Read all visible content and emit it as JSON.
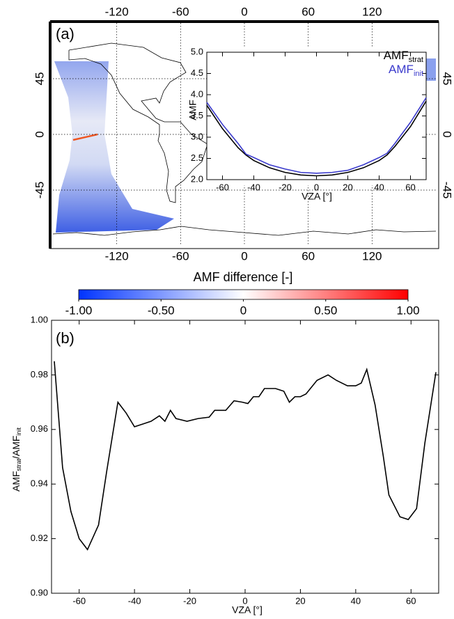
{
  "chart_data": [
    {
      "type": "map",
      "label": "(a)",
      "xlim": [
        -180,
        180
      ],
      "ylim": [
        -90,
        90
      ],
      "xticks": [
        -120,
        -60,
        0,
        60,
        120
      ],
      "yticks": [
        45,
        0,
        -45
      ],
      "grid": true
    },
    {
      "type": "line",
      "xlabel": "VZA [°]",
      "ylabel": "AMF",
      "x": [
        -70,
        -60,
        -50,
        -45,
        -40,
        -30,
        -20,
        -10,
        0,
        10,
        20,
        30,
        40,
        45,
        50,
        60,
        70
      ],
      "series": [
        {
          "name": "AMF",
          "subscript": "strat",
          "color": "#000000",
          "values": [
            3.75,
            3.2,
            2.75,
            2.58,
            2.45,
            2.28,
            2.17,
            2.11,
            2.09,
            2.11,
            2.17,
            2.28,
            2.45,
            2.58,
            2.78,
            3.25,
            3.85
          ]
        },
        {
          "name": "AMF",
          "subscript": "init",
          "color": "#3a3acc",
          "values": [
            3.82,
            3.3,
            2.85,
            2.6,
            2.52,
            2.35,
            2.25,
            2.17,
            2.15,
            2.17,
            2.22,
            2.35,
            2.52,
            2.62,
            2.85,
            3.35,
            3.93
          ]
        }
      ],
      "xlim": [
        -70,
        70
      ],
      "ylim": [
        2,
        5
      ],
      "xticks": [
        -60,
        -40,
        -20,
        0,
        20,
        40,
        60
      ],
      "yticks": [
        {
          "value": 2,
          "label": "2.0"
        },
        {
          "value": 2.5,
          "label": "2.5"
        },
        {
          "value": 3,
          "label": "3.0"
        },
        {
          "value": 3.5,
          "label": "3.5"
        },
        {
          "value": 4,
          "label": "4.0"
        },
        {
          "value": 4.5,
          "label": "4.5"
        },
        {
          "value": 5,
          "label": "5.0"
        }
      ],
      "legend": "upper right"
    },
    {
      "type": "colorbar",
      "title": "AMF difference [-]",
      "colors": [
        "#0033ff",
        "#ffffff",
        "#ff0000"
      ],
      "lim": [
        -1,
        1
      ],
      "ticks": [
        {
          "value": -1,
          "label": "-1.00"
        },
        {
          "value": -0.5,
          "label": "-0.50"
        },
        0,
        {
          "value": 0.5,
          "label": "0.50"
        },
        {
          "value": 1,
          "label": "1.00"
        }
      ]
    },
    {
      "type": "line",
      "label": "(b)",
      "xlabel": "VZA [°]",
      "ylabel": [
        "AMF",
        "strat",
        "/AMF",
        "init"
      ],
      "x": [
        -69,
        -66,
        -63,
        -60,
        -57,
        -53,
        -50,
        -46,
        -43,
        -40,
        -37,
        -34,
        -31,
        -29,
        -27,
        -25,
        -21,
        -17,
        -13,
        -11,
        -7,
        -4,
        -1,
        1,
        3,
        5,
        7,
        11,
        14,
        16,
        18,
        20,
        22,
        26,
        30,
        33,
        37,
        40,
        42,
        44,
        47,
        50,
        52,
        56,
        59,
        62,
        65,
        69
      ],
      "series": [
        {
          "color": "#000000",
          "values": [
            0.985,
            0.946,
            0.93,
            0.92,
            0.916,
            0.925,
            0.945,
            0.97,
            0.966,
            0.961,
            0.962,
            0.963,
            0.965,
            0.963,
            0.967,
            0.964,
            0.963,
            0.964,
            0.9645,
            0.967,
            0.967,
            0.9705,
            0.97,
            0.9695,
            0.972,
            0.972,
            0.975,
            0.975,
            0.974,
            0.97,
            0.972,
            0.972,
            0.973,
            0.978,
            0.98,
            0.978,
            0.976,
            0.976,
            0.977,
            0.982,
            0.969,
            0.95,
            0.936,
            0.928,
            0.927,
            0.931,
            0.955,
            0.981
          ]
        }
      ],
      "xlim": [
        -70,
        70
      ],
      "ylim": [
        0.9,
        1.0
      ],
      "xticks": [
        -60,
        -40,
        -20,
        0,
        20,
        40,
        60
      ],
      "yticks": [
        {
          "value": 0.9,
          "label": "0.90"
        },
        {
          "value": 0.92,
          "label": "0.92"
        },
        {
          "value": 0.94,
          "label": "0.94"
        },
        {
          "value": 0.96,
          "label": "0.96"
        },
        {
          "value": 0.98,
          "label": "0.98"
        },
        {
          "value": 1.0,
          "label": "1.00"
        }
      ]
    }
  ]
}
